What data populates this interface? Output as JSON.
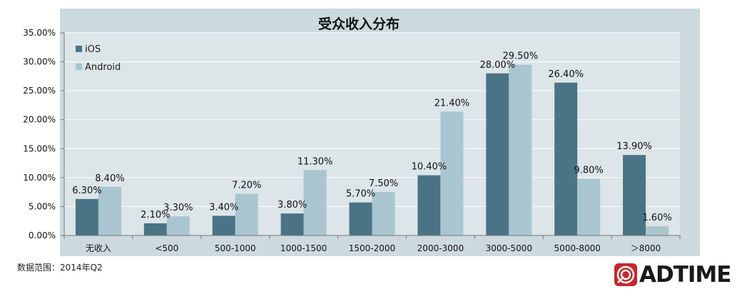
{
  "chart_data": {
    "type": "bar",
    "title": "受众收入分布",
    "categories": [
      "无收入",
      "<500",
      "500-1000",
      "1000-1500",
      "1500-2000",
      "2000-3000",
      "3000-5000",
      "5000-8000",
      "＞8000"
    ],
    "series": [
      {
        "name": "iOS",
        "color": "#4a7485",
        "values": [
          6.3,
          2.1,
          3.4,
          3.8,
          5.7,
          10.4,
          28.0,
          26.4,
          13.9
        ],
        "labels": [
          "6.30%",
          "2.10%",
          "3.40%",
          "3.80%",
          "5.70%",
          "10.40%",
          "28.00%",
          "26.40%",
          "13.90%"
        ]
      },
      {
        "name": "Android",
        "color": "#a9c6d0",
        "values": [
          8.4,
          3.3,
          7.2,
          11.3,
          7.5,
          21.4,
          29.5,
          9.8,
          1.6
        ],
        "labels": [
          "8.40%",
          "3.30%",
          "7.20%",
          "11.30%",
          "7.50%",
          "21.40%",
          "29.50%",
          "9.80%",
          "1.60%"
        ]
      }
    ],
    "y_ticks": [
      "0.00%",
      "5.00%",
      "10.00%",
      "15.00%",
      "20.00%",
      "25.00%",
      "30.00%",
      "35.00%"
    ],
    "ylim": [
      0,
      35
    ],
    "legend_position": "top-left",
    "grid": true,
    "plot_background": "#dce5e8",
    "frame_background": "#ccdae0"
  },
  "source_note": "数据范围：2014年Q2",
  "logo": {
    "text": "ADTIME",
    "name": "adtime-logo",
    "color": "#c8262c"
  }
}
